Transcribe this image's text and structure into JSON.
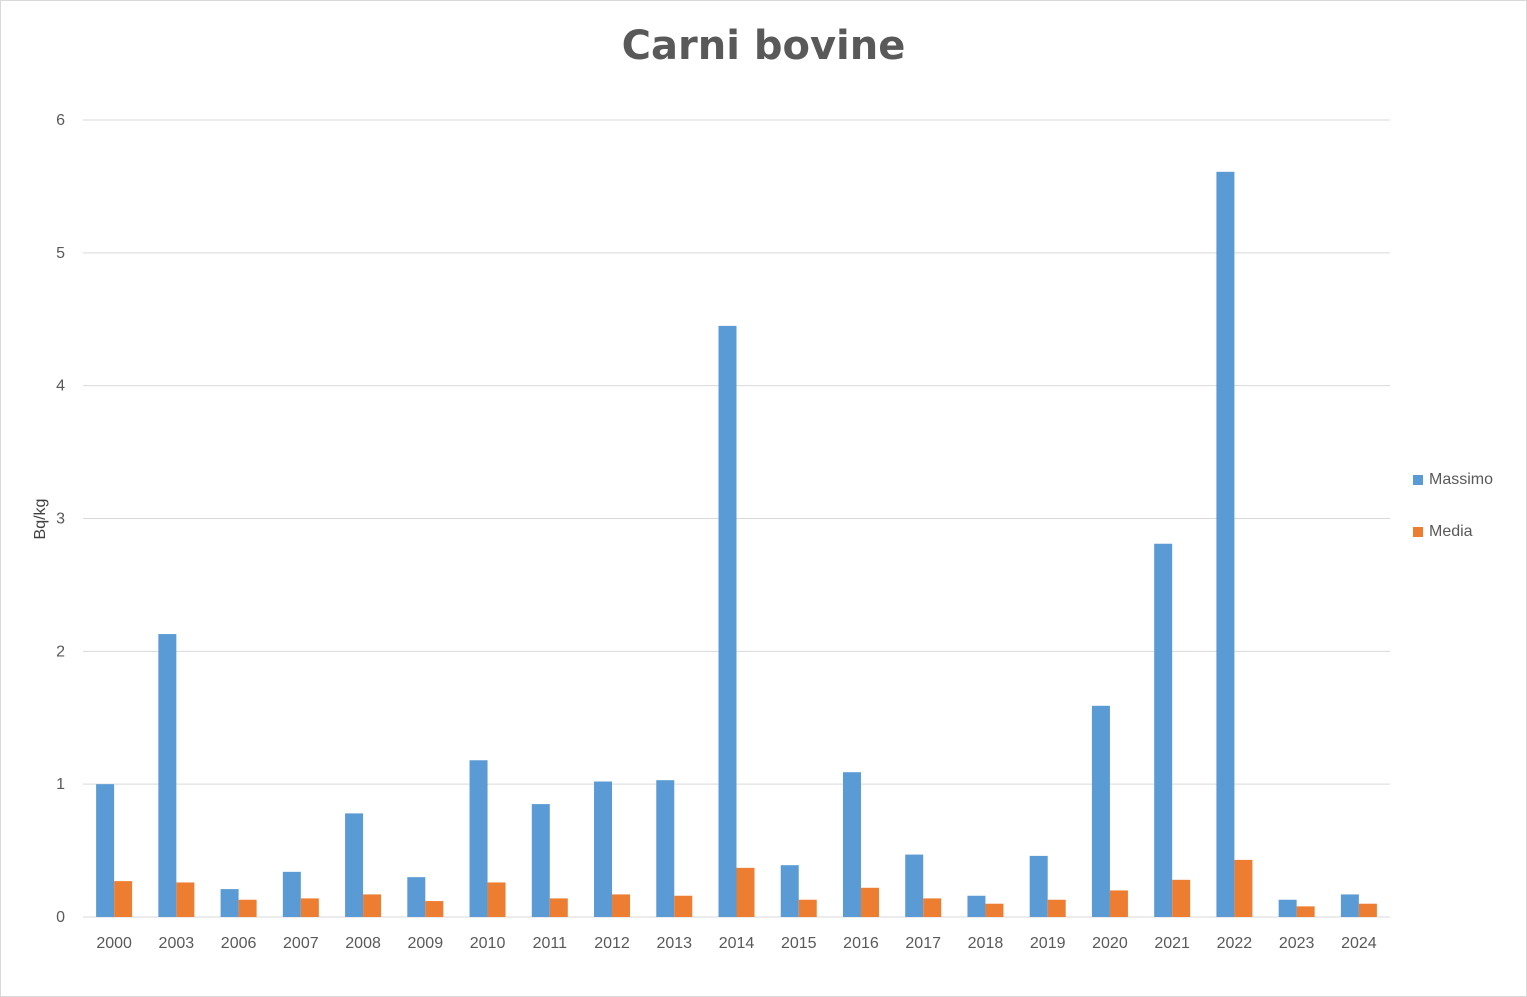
{
  "chart_data": {
    "type": "bar",
    "title": "Carni bovine",
    "xlabel": "",
    "ylabel": "Bq/kg",
    "ylim": [
      0,
      6
    ],
    "yticks": [
      "0",
      "1",
      "2",
      "3",
      "4",
      "5",
      "6"
    ],
    "grid": true,
    "legend_position": "right",
    "categories": [
      "2000",
      "2003",
      "2006",
      "2007",
      "2008",
      "2009",
      "2010",
      "2011",
      "2012",
      "2013",
      "2014",
      "2015",
      "2016",
      "2017",
      "2018",
      "2019",
      "2020",
      "2021",
      "2022",
      "2023",
      "2024"
    ],
    "series": [
      {
        "name": "Massimo",
        "color": "#5b9bd5",
        "values": [
          1.0,
          2.13,
          0.21,
          0.34,
          0.78,
          0.3,
          1.18,
          0.85,
          1.02,
          1.03,
          4.45,
          0.39,
          1.09,
          0.47,
          0.16,
          0.46,
          1.59,
          2.81,
          5.61,
          0.13,
          0.17
        ]
      },
      {
        "name": "Media",
        "color": "#ed7d31",
        "values": [
          0.27,
          0.26,
          0.13,
          0.14,
          0.17,
          0.12,
          0.26,
          0.14,
          0.17,
          0.16,
          0.37,
          0.13,
          0.22,
          0.14,
          0.1,
          0.13,
          0.2,
          0.28,
          0.43,
          0.08,
          0.1
        ]
      }
    ]
  }
}
